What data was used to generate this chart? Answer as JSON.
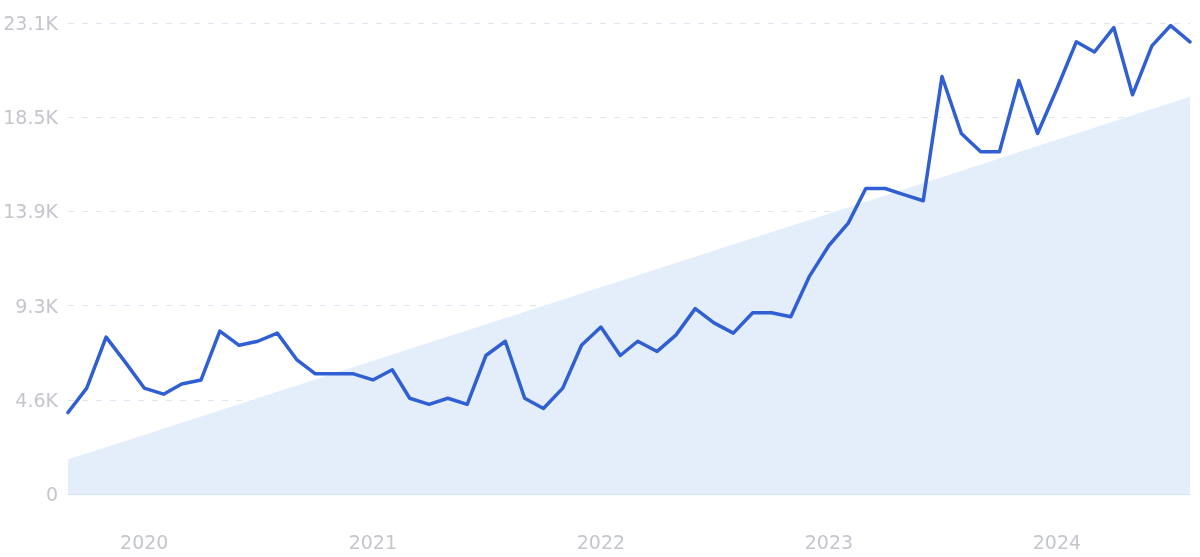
{
  "chart_data": {
    "type": "line",
    "x": [
      "2019-09",
      "2019-10",
      "2019-11",
      "2019-12",
      "2020-01",
      "2020-02",
      "2020-03",
      "2020-04",
      "2020-05",
      "2020-06",
      "2020-07",
      "2020-08",
      "2020-09",
      "2020-10",
      "2020-11",
      "2020-12",
      "2021-01",
      "2021-02",
      "2021-03",
      "2021-04",
      "2021-05",
      "2021-06",
      "2021-07",
      "2021-08",
      "2021-09",
      "2021-10",
      "2021-11",
      "2021-12",
      "2022-01",
      "2022-02",
      "2022-03",
      "2022-04",
      "2022-05",
      "2022-06",
      "2022-07",
      "2022-08",
      "2022-09",
      "2022-10",
      "2022-11",
      "2022-12",
      "2023-01",
      "2023-02",
      "2023-03",
      "2023-04",
      "2023-05",
      "2023-06",
      "2023-07",
      "2023-08",
      "2023-09",
      "2023-10",
      "2023-11",
      "2023-12",
      "2024-01",
      "2024-02",
      "2024-03",
      "2024-04",
      "2024-05",
      "2024-06",
      "2024-07",
      "2024-08"
    ],
    "series": [
      {
        "type": "area",
        "color": "#e4eefb",
        "x": [
          "2019-09",
          "2024-08"
        ],
        "values": [
          1700,
          19500
        ]
      },
      {
        "color": "#2f5fd3",
        "values": [
          4000,
          5200,
          7700,
          6500,
          5200,
          4900,
          5400,
          5600,
          8000,
          7300,
          7500,
          7900,
          6600,
          5900,
          5900,
          5900,
          5600,
          6100,
          4700,
          4400,
          4700,
          4400,
          6800,
          7500,
          4700,
          4200,
          5200,
          7300,
          8200,
          6800,
          7500,
          7000,
          7800,
          9100,
          8400,
          7900,
          8900,
          8900,
          8700,
          10700,
          12200,
          13300,
          15000,
          15000,
          14700,
          14400,
          20500,
          17700,
          16800,
          16800,
          20300,
          17700,
          19900,
          22200,
          21700,
          22900,
          19600,
          22000,
          23000,
          22200
        ]
      }
    ],
    "xlim": [
      "2019-09",
      "2024-08"
    ],
    "xticks": [
      {
        "value": "2020-01",
        "label": "2020"
      },
      {
        "value": "2021-01",
        "label": "2021"
      },
      {
        "value": "2022-01",
        "label": "2022"
      },
      {
        "value": "2023-01",
        "label": "2023"
      },
      {
        "value": "2024-01",
        "label": "2024"
      }
    ],
    "ylim": [
      0,
      23125
    ],
    "yticks": [
      0,
      {
        "value": 4625,
        "label": "4.6K"
      },
      {
        "value": 9250,
        "label": "9.3K"
      },
      {
        "value": 13875,
        "label": "13.9K"
      },
      {
        "value": 18500,
        "label": "18.5K"
      },
      {
        "value": 23125,
        "label": "23.1K"
      }
    ],
    "grid": "y",
    "line_style": "solid",
    "marker": "none"
  }
}
